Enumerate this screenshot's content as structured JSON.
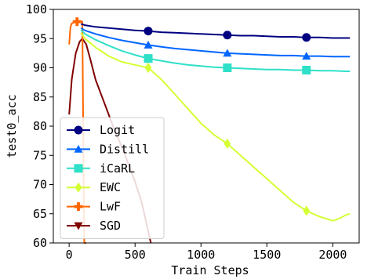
{
  "chart_data": {
    "type": "line",
    "xlabel": "Train Steps",
    "ylabel": "test0_acc",
    "xlim": [
      -120,
      2200
    ],
    "ylim": [
      60,
      100
    ],
    "x_ticks": [
      "0",
      "500",
      "1000",
      "1500",
      "2000"
    ],
    "y_ticks": [
      "60",
      "65",
      "70",
      "75",
      "80",
      "85",
      "90",
      "95",
      "100"
    ],
    "grid": false,
    "legend_position": "lower-left",
    "series": [
      {
        "name": "Logit",
        "color": "#000080",
        "marker": "circle",
        "x": [
          90,
          120,
          200,
          300,
          400,
          500,
          600,
          700,
          800,
          900,
          1000,
          1100,
          1200,
          1300,
          1400,
          1500,
          1600,
          1700,
          1800,
          1900,
          2000,
          2100,
          2130
        ],
        "y": [
          97.5,
          97.3,
          97.0,
          96.8,
          96.6,
          96.4,
          96.3,
          96.1,
          96.0,
          95.9,
          95.8,
          95.7,
          95.6,
          95.5,
          95.5,
          95.4,
          95.3,
          95.3,
          95.2,
          95.2,
          95.1,
          95.1,
          95.1
        ],
        "markers_x": [
          600,
          1200,
          1800
        ],
        "markers_y": [
          96.3,
          95.6,
          95.2
        ]
      },
      {
        "name": "Distill",
        "color": "#0066ff",
        "marker": "triangle",
        "x": [
          90,
          120,
          200,
          300,
          400,
          500,
          600,
          700,
          800,
          900,
          1000,
          1100,
          1200,
          1300,
          1400,
          1500,
          1600,
          1700,
          1800,
          1900,
          2000,
          2100,
          2130
        ],
        "y": [
          96.8,
          96.4,
          95.8,
          95.2,
          94.7,
          94.3,
          93.9,
          93.6,
          93.3,
          93.1,
          92.9,
          92.7,
          92.5,
          92.4,
          92.3,
          92.2,
          92.1,
          92.1,
          92.0,
          92.0,
          91.9,
          91.9,
          91.9
        ],
        "markers_x": [
          600,
          1200,
          1800
        ],
        "markers_y": [
          93.9,
          92.5,
          92.0
        ]
      },
      {
        "name": "iCaRL",
        "color": "#2fe0c8",
        "marker": "square",
        "x": [
          90,
          120,
          200,
          300,
          400,
          500,
          600,
          700,
          800,
          900,
          1000,
          1100,
          1200,
          1300,
          1400,
          1500,
          1600,
          1700,
          1800,
          1900,
          2000,
          2100,
          2130
        ],
        "y": [
          96.5,
          95.8,
          94.8,
          93.8,
          92.9,
          92.2,
          91.6,
          91.2,
          90.8,
          90.5,
          90.3,
          90.1,
          90.0,
          89.9,
          89.8,
          89.7,
          89.7,
          89.6,
          89.6,
          89.5,
          89.5,
          89.4,
          89.4
        ],
        "markers_x": [
          600,
          1200,
          1800
        ],
        "markers_y": [
          91.6,
          90.0,
          89.6
        ]
      },
      {
        "name": "EWC",
        "color": "#d4ff33",
        "marker": "diamond",
        "x": [
          90,
          120,
          200,
          300,
          400,
          500,
          600,
          700,
          800,
          900,
          1000,
          1100,
          1200,
          1300,
          1400,
          1500,
          1600,
          1700,
          1800,
          1900,
          2000,
          2050,
          2100,
          2130
        ],
        "y": [
          96.0,
          95.0,
          93.5,
          92.0,
          91.0,
          90.5,
          90.0,
          88.0,
          85.5,
          83.0,
          80.5,
          78.5,
          77.0,
          75.0,
          73.0,
          71.0,
          69.0,
          67.0,
          65.5,
          64.5,
          63.8,
          64.2,
          64.8,
          65.0
        ],
        "markers_x": [
          600,
          1200,
          1800
        ],
        "markers_y": [
          90.0,
          77.0,
          65.5
        ]
      },
      {
        "name": "LwF",
        "color": "#ff6600",
        "marker": "plus",
        "x": [
          0,
          10,
          20,
          40,
          60,
          80,
          100,
          105,
          110,
          115,
          130
        ],
        "y": [
          94.0,
          97.0,
          97.6,
          97.8,
          97.9,
          98.0,
          97.9,
          85.0,
          70.0,
          60.0,
          60.0
        ],
        "markers_x": [
          60
        ],
        "markers_y": [
          97.9
        ]
      },
      {
        "name": "SGD",
        "color": "#800000",
        "marker": "triangle-down",
        "x": [
          0,
          20,
          50,
          80,
          100,
          130,
          160,
          200,
          250,
          300,
          350,
          400,
          450,
          500,
          550,
          600,
          620
        ],
        "y": [
          82.0,
          88.0,
          92.5,
          94.5,
          95.0,
          94.0,
          91.5,
          88.0,
          85.0,
          82.0,
          79.0,
          76.5,
          73.5,
          70.5,
          67.0,
          62.0,
          60.0
        ],
        "markers_x": [],
        "markers_y": []
      }
    ]
  }
}
